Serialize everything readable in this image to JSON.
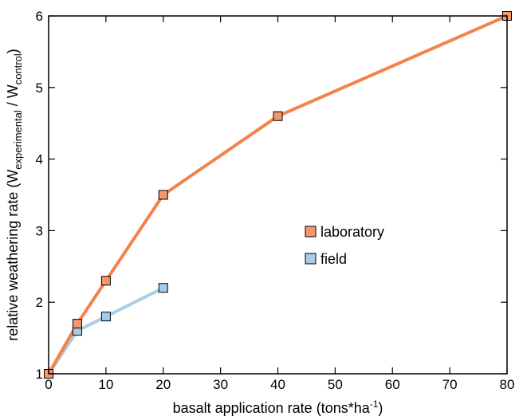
{
  "chart_data": {
    "type": "line",
    "xlabel": {
      "text": "basalt application rate (tons*ha",
      "sup": "-1",
      "tail": ")"
    },
    "ylabel": {
      "prefix": "relative weathering rate (W",
      "sub1": "experimental",
      "mid": " / W",
      "sub2": "control",
      "tail": ")"
    },
    "xlim": [
      0,
      80
    ],
    "ylim": [
      1,
      6
    ],
    "xticks": [
      0,
      10,
      20,
      30,
      40,
      50,
      60,
      70,
      80
    ],
    "yticks": [
      1,
      2,
      3,
      4,
      5,
      6
    ],
    "grid": false,
    "legend_position": "center-right",
    "series": [
      {
        "name": "laboratory",
        "line_color": "#f5824a",
        "marker_color": "#f7966a",
        "x": [
          0,
          5,
          10,
          20,
          40,
          80
        ],
        "y": [
          1.0,
          1.7,
          2.3,
          3.5,
          4.6,
          6.0
        ]
      },
      {
        "name": "field",
        "line_color": "#a9cde3",
        "marker_color": "#a6cbe6",
        "x": [
          0,
          5,
          10,
          20
        ],
        "y": [
          1.0,
          1.6,
          1.8,
          2.2
        ]
      }
    ]
  }
}
